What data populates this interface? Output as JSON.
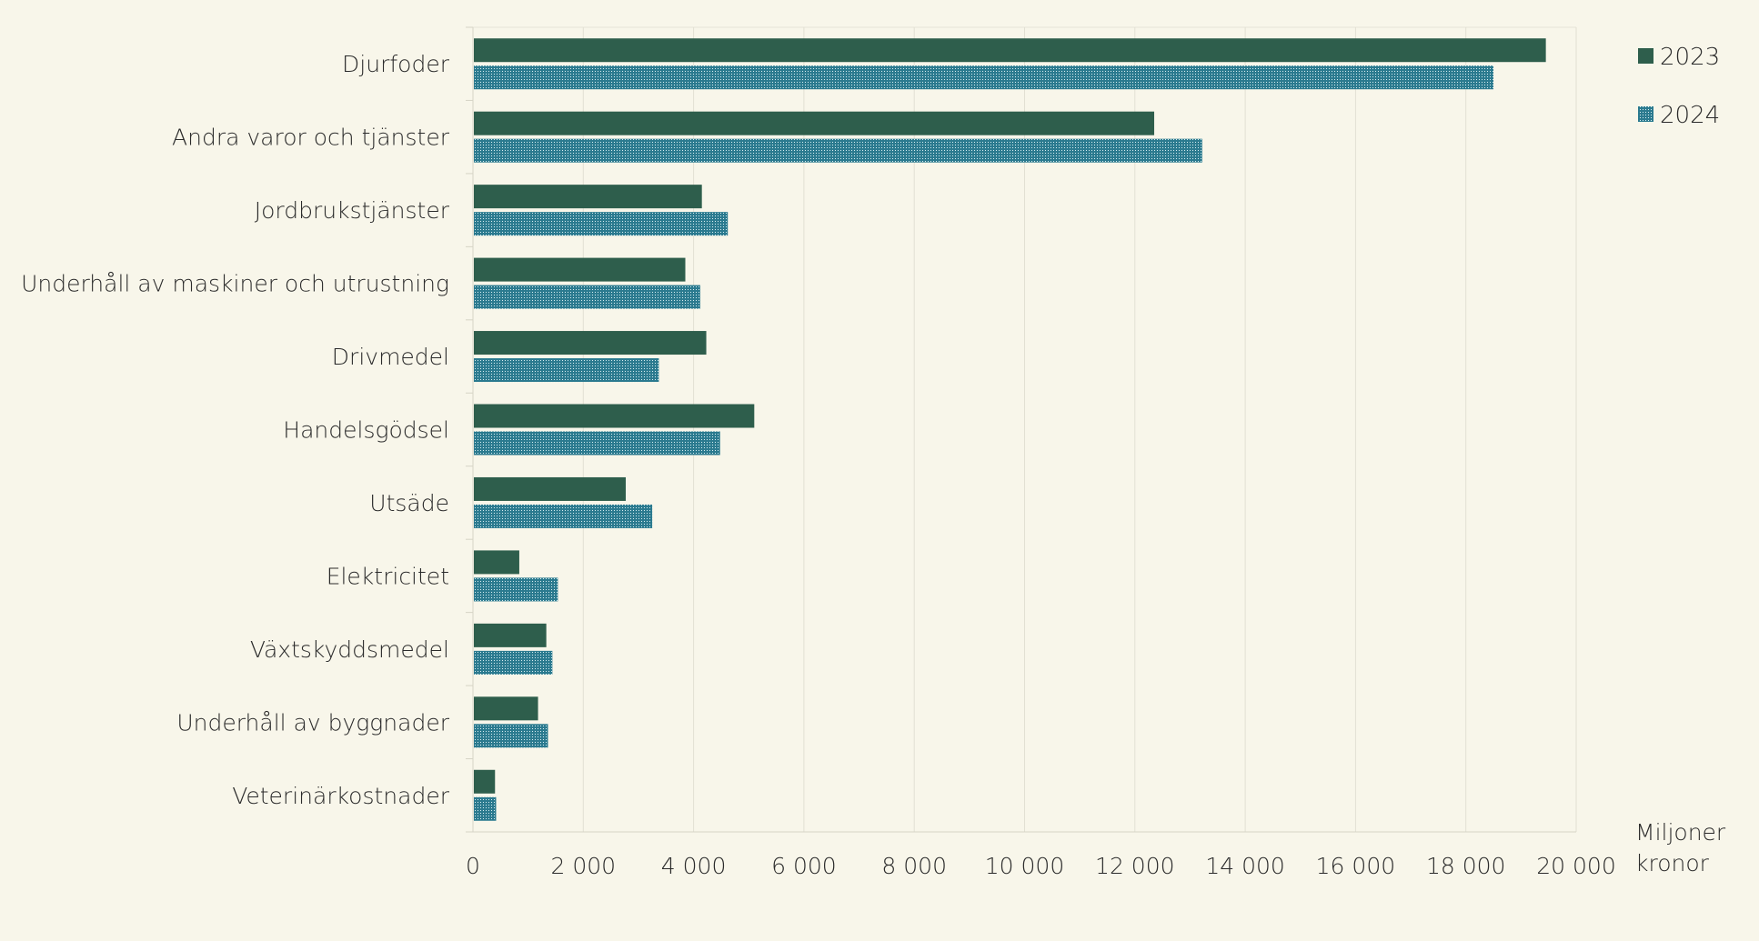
{
  "chart_data": {
    "type": "bar",
    "orientation": "horizontal",
    "categories": [
      "Djurfoder",
      "Andra varor och tjänster",
      "Jordbrukstjänster",
      "Underhåll av maskiner och utrustning",
      "Drivmedel",
      "Handelsgödsel",
      "Utsäde",
      "Elektricitet",
      "Växtskyddsmedel",
      "Underhåll av byggnader",
      "Veterinärkostnader"
    ],
    "series": [
      {
        "name": "2023",
        "color": "#2e5e4c",
        "pattern": "solid",
        "values": [
          19450,
          12350,
          4150,
          3850,
          4230,
          5100,
          2770,
          840,
          1330,
          1180,
          400
        ]
      },
      {
        "name": "2024",
        "color": "#2b7a8f",
        "pattern": "dotted",
        "values": [
          18500,
          13220,
          4620,
          4120,
          3370,
          4480,
          3250,
          1540,
          1440,
          1360,
          420
        ]
      }
    ],
    "xlim": [
      0,
      20000
    ],
    "xticks": [
      0,
      2000,
      4000,
      6000,
      8000,
      10000,
      12000,
      14000,
      16000,
      18000,
      20000
    ],
    "xtick_labels": [
      "0",
      "2 000",
      "4 000",
      "6 000",
      "8 000",
      "10 000",
      "12 000",
      "14 000",
      "16 000",
      "18 000",
      "20 000"
    ],
    "xlabel_lines": [
      "Miljoner",
      "kronor"
    ],
    "ylabel": "",
    "title": "",
    "grid": "vertical",
    "legend_position": "top-right"
  }
}
